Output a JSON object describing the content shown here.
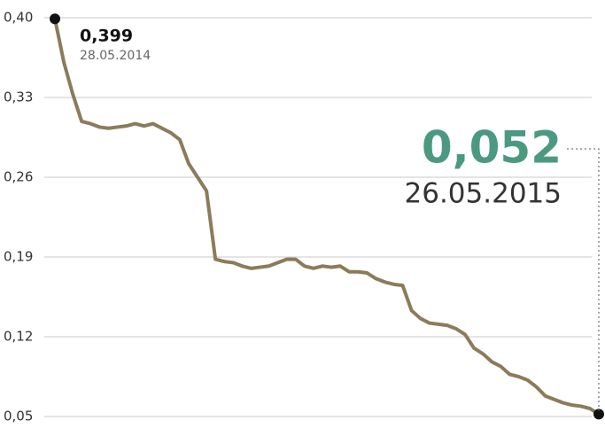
{
  "chart_data": {
    "type": "line",
    "series": [
      {
        "color": "#8c7b5a",
        "values": [
          0.399,
          0.361,
          0.333,
          0.309,
          0.307,
          0.304,
          0.303,
          0.304,
          0.305,
          0.307,
          0.305,
          0.307,
          0.303,
          0.299,
          0.293,
          0.272,
          0.26,
          0.248,
          0.188,
          0.186,
          0.185,
          0.182,
          0.18,
          0.181,
          0.182,
          0.185,
          0.188,
          0.188,
          0.182,
          0.18,
          0.182,
          0.181,
          0.182,
          0.177,
          0.177,
          0.176,
          0.171,
          0.168,
          0.166,
          0.165,
          0.143,
          0.136,
          0.132,
          0.131,
          0.13,
          0.127,
          0.122,
          0.11,
          0.105,
          0.098,
          0.094,
          0.087,
          0.085,
          0.082,
          0.076,
          0.068,
          0.065,
          0.062,
          0.06,
          0.059,
          0.057,
          0.052
        ]
      }
    ],
    "ylim": [
      0.05,
      0.4
    ],
    "yticks": [
      {
        "value": 0.05,
        "label": "0,05"
      },
      {
        "value": 0.12,
        "label": "0,12"
      },
      {
        "value": 0.19,
        "label": "0,19"
      },
      {
        "value": 0.26,
        "label": "0,26"
      },
      {
        "value": 0.33,
        "label": "0,33"
      },
      {
        "value": 0.4,
        "label": "0,40"
      }
    ],
    "grid": true,
    "annotations": [
      {
        "label": "0,399",
        "value": 0.399,
        "date": "28.05.2014"
      },
      {
        "label": "0,052",
        "value": 0.052,
        "date": "26.05.2015",
        "color": "#4b9a7f"
      }
    ]
  }
}
